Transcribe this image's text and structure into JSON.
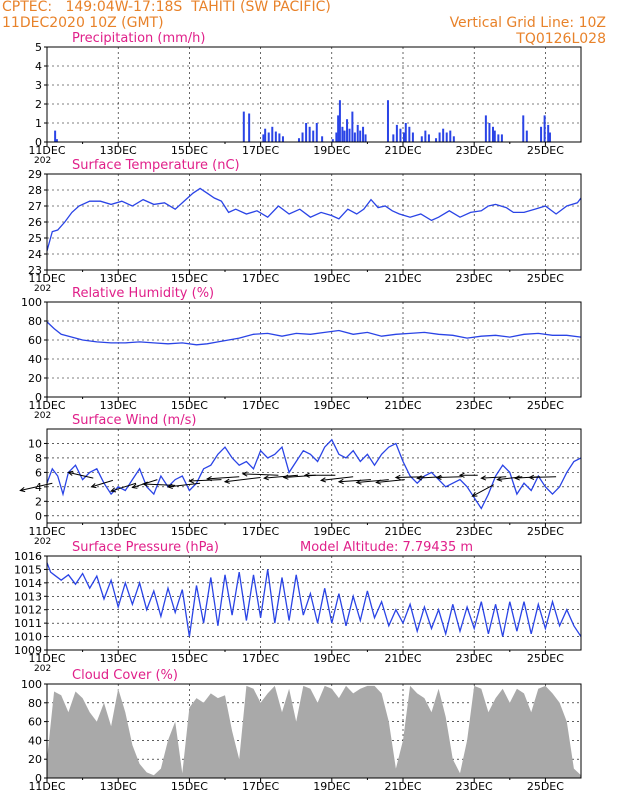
{
  "header": {
    "line1_left": "CPTEC:   149:04W-17:18S  TAHITI (SW PACIFIC)",
    "line2_left": "11DEC2020 10Z (GMT)",
    "line1_right": "Vertical Grid Line: 10Z",
    "line2_right": "TQ0126L028"
  },
  "colors": {
    "header": "#e8822a",
    "title": "#e0208a",
    "series": "#2a44e6",
    "barrel": "#000000",
    "cloud": "#a9a9a9"
  },
  "x_axis": {
    "ticks": [
      "11DEC",
      "13DEC",
      "15DEC",
      "17DEC",
      "19DEC",
      "21DEC",
      "23DEC",
      "25DEC"
    ],
    "year_fragment": "202"
  },
  "chart_data": [
    {
      "id": "precip",
      "type": "bar",
      "title": "Precipitation (mm/h)",
      "ylim": [
        0,
        5
      ],
      "yticks": [
        "0",
        "1",
        "2",
        "3",
        "4",
        "5"
      ],
      "x_unit": "days since 11DEC 10Z",
      "bars": [
        [
          0.2,
          0.6
        ],
        [
          0.25,
          0.15
        ],
        [
          5.5,
          1.6
        ],
        [
          5.65,
          1.5
        ],
        [
          6.05,
          0.4
        ],
        [
          6.1,
          0.7
        ],
        [
          6.2,
          0.5
        ],
        [
          6.3,
          0.8
        ],
        [
          6.4,
          0.55
        ],
        [
          6.5,
          0.45
        ],
        [
          6.6,
          0.3
        ],
        [
          7.05,
          0.2
        ],
        [
          7.15,
          0.5
        ],
        [
          7.25,
          1.0
        ],
        [
          7.35,
          0.8
        ],
        [
          7.45,
          0.6
        ],
        [
          7.55,
          1.0
        ],
        [
          7.7,
          0.3
        ],
        [
          8.0,
          0.15
        ],
        [
          8.1,
          0.5
        ],
        [
          8.15,
          1.4
        ],
        [
          8.2,
          2.2
        ],
        [
          8.27,
          0.8
        ],
        [
          8.33,
          0.6
        ],
        [
          8.4,
          1.2
        ],
        [
          8.47,
          0.7
        ],
        [
          8.55,
          1.6
        ],
        [
          8.62,
          0.5
        ],
        [
          8.7,
          0.9
        ],
        [
          8.77,
          0.6
        ],
        [
          8.85,
          0.8
        ],
        [
          8.92,
          0.4
        ],
        [
          9.55,
          2.2
        ],
        [
          9.7,
          0.4
        ],
        [
          9.8,
          0.9
        ],
        [
          9.9,
          0.7
        ],
        [
          10.0,
          0.5
        ],
        [
          10.05,
          1.0
        ],
        [
          10.15,
          0.8
        ],
        [
          10.25,
          0.5
        ],
        [
          10.5,
          0.3
        ],
        [
          10.6,
          0.6
        ],
        [
          10.7,
          0.4
        ],
        [
          10.9,
          0.2
        ],
        [
          11.0,
          0.5
        ],
        [
          11.1,
          0.7
        ],
        [
          11.2,
          0.5
        ],
        [
          11.3,
          0.6
        ],
        [
          11.4,
          0.3
        ],
        [
          12.3,
          1.4
        ],
        [
          12.4,
          1.0
        ],
        [
          12.5,
          0.8
        ],
        [
          12.55,
          0.6
        ],
        [
          12.65,
          0.4
        ],
        [
          12.75,
          0.4
        ],
        [
          13.35,
          1.4
        ],
        [
          13.45,
          0.6
        ],
        [
          13.85,
          0.8
        ],
        [
          13.95,
          1.4
        ],
        [
          14.05,
          0.9
        ],
        [
          14.1,
          0.5
        ]
      ]
    },
    {
      "id": "temp",
      "type": "line",
      "title": "Surface Temperature (nC)",
      "ylim": [
        23,
        29
      ],
      "yticks": [
        "23",
        "24",
        "25",
        "26",
        "27",
        "28",
        "29"
      ],
      "x_unit": "days since 11DEC 10Z",
      "x": [
        0,
        0.15,
        0.3,
        0.5,
        0.7,
        0.9,
        1.2,
        1.5,
        1.8,
        2.1,
        2.4,
        2.7,
        3.0,
        3.3,
        3.6,
        3.9,
        4.1,
        4.3,
        4.5,
        4.7,
        4.9,
        5.1,
        5.3,
        5.6,
        5.9,
        6.2,
        6.5,
        6.8,
        7.1,
        7.4,
        7.7,
        8.0,
        8.2,
        8.45,
        8.7,
        8.9,
        9.1,
        9.3,
        9.5,
        9.7,
        9.9,
        10.2,
        10.5,
        10.8,
        11.0,
        11.3,
        11.6,
        11.9,
        12.2,
        12.4,
        12.6,
        12.9,
        13.1,
        13.4,
        13.7,
        14.0,
        14.3,
        14.6,
        14.9,
        15.0
      ],
      "values": [
        24.2,
        25.4,
        25.5,
        26.0,
        26.6,
        27.0,
        27.3,
        27.3,
        27.1,
        27.3,
        27.0,
        27.4,
        27.1,
        27.2,
        26.8,
        27.4,
        27.8,
        28.1,
        27.8,
        27.5,
        27.3,
        26.6,
        26.8,
        26.5,
        26.7,
        26.3,
        27.0,
        26.5,
        26.8,
        26.3,
        26.6,
        26.4,
        26.2,
        26.8,
        26.5,
        26.8,
        27.4,
        26.9,
        27.0,
        26.7,
        26.5,
        26.3,
        26.5,
        26.1,
        26.3,
        26.7,
        26.3,
        26.6,
        26.7,
        27.0,
        27.1,
        26.9,
        26.6,
        26.6,
        26.8,
        27.0,
        26.5,
        27.0,
        27.2,
        27.5
      ]
    },
    {
      "id": "rh",
      "type": "line",
      "title": "Relative Humidity (%)",
      "ylim": [
        0,
        100
      ],
      "yticks": [
        "0",
        "20",
        "40",
        "60",
        "80",
        "100"
      ],
      "x_unit": "days since 11DEC 10Z",
      "x": [
        0,
        0.2,
        0.4,
        0.7,
        1.0,
        1.4,
        1.8,
        2.2,
        2.6,
        3.0,
        3.4,
        3.8,
        4.2,
        4.5,
        4.8,
        5.1,
        5.4,
        5.8,
        6.2,
        6.6,
        7.0,
        7.4,
        7.8,
        8.2,
        8.6,
        9.0,
        9.4,
        9.8,
        10.2,
        10.6,
        11.0,
        11.4,
        11.8,
        12.2,
        12.6,
        13.0,
        13.4,
        13.8,
        14.2,
        14.6,
        15.0
      ],
      "values": [
        79,
        72,
        66,
        63,
        60,
        58,
        57,
        57,
        58,
        57,
        56,
        57,
        55,
        56,
        58,
        60,
        62,
        66,
        67,
        64,
        67,
        66,
        68,
        70,
        66,
        68,
        64,
        66,
        67,
        68,
        66,
        65,
        62,
        64,
        65,
        63,
        66,
        67,
        65,
        65,
        63
      ]
    },
    {
      "id": "wind",
      "type": "line",
      "title": "Surface Wind (m/s)",
      "ylim": [
        -1,
        12
      ],
      "yticks": [
        "0",
        "2",
        "4",
        "6",
        "8",
        "10"
      ],
      "x_unit": "days since 11DEC 10Z",
      "x": [
        0,
        0.15,
        0.3,
        0.45,
        0.6,
        0.8,
        1.0,
        1.2,
        1.4,
        1.6,
        1.8,
        2.0,
        2.2,
        2.4,
        2.6,
        2.8,
        3.0,
        3.2,
        3.4,
        3.6,
        3.8,
        4.0,
        4.2,
        4.4,
        4.6,
        4.8,
        5.0,
        5.2,
        5.4,
        5.6,
        5.8,
        6.0,
        6.2,
        6.4,
        6.6,
        6.8,
        7.0,
        7.2,
        7.4,
        7.6,
        7.8,
        8.0,
        8.2,
        8.4,
        8.6,
        8.8,
        9.0,
        9.2,
        9.4,
        9.6,
        9.8,
        10.0,
        10.2,
        10.4,
        10.6,
        10.8,
        11.0,
        11.2,
        11.4,
        11.6,
        11.8,
        12.0,
        12.2,
        12.4,
        12.6,
        12.8,
        13.0,
        13.2,
        13.4,
        13.6,
        13.8,
        14.0,
        14.2,
        14.4,
        14.6,
        14.8,
        15.0
      ],
      "values": [
        4.5,
        6.5,
        5.5,
        3.0,
        6.0,
        7.0,
        5.0,
        6.0,
        6.5,
        4.5,
        3.0,
        4.0,
        3.5,
        5.0,
        6.5,
        4.0,
        3.0,
        5.5,
        4.0,
        5.0,
        5.5,
        3.5,
        4.5,
        6.5,
        7.0,
        8.5,
        9.5,
        8.0,
        7.0,
        7.5,
        6.5,
        9.0,
        8.0,
        8.5,
        9.5,
        6.0,
        7.5,
        9.0,
        8.5,
        7.5,
        9.5,
        10.5,
        8.5,
        8.0,
        9.0,
        7.5,
        8.5,
        7.0,
        8.5,
        9.5,
        10.0,
        7.5,
        5.5,
        4.5,
        5.5,
        6.0,
        5.0,
        4.0,
        4.5,
        5.0,
        4.0,
        2.5,
        1.0,
        3.0,
        5.5,
        7.0,
        6.0,
        3.0,
        4.5,
        3.5,
        5.5,
        4.0,
        3.0,
        4.0,
        6.0,
        7.5,
        8.0
      ],
      "arrows": [
        [
          0.15,
          4.5,
          0.9,
          1.0
        ],
        [
          1.3,
          5.2,
          0.7,
          -0.8
        ],
        [
          1.85,
          4.9,
          0.6,
          0.9
        ],
        [
          2.5,
          4.5,
          0.7,
          1.1
        ],
        [
          3.1,
          5.0,
          0.7,
          1.1
        ],
        [
          3.6,
          4.2,
          0.9,
          -0.2
        ],
        [
          4.3,
          4.5,
          0.9,
          0.5
        ],
        [
          4.9,
          5.0,
          0.9,
          0.2
        ],
        [
          5.4,
          5.4,
          0.9,
          0.3
        ],
        [
          6.0,
          5.3,
          1.0,
          0.6
        ],
        [
          6.5,
          5.6,
          1.0,
          -0.2
        ],
        [
          7.05,
          5.6,
          0.95,
          0.4
        ],
        [
          7.55,
          5.6,
          0.9,
          0.3
        ],
        [
          8.1,
          5.6,
          0.85,
          0.0
        ],
        [
          8.6,
          5.4,
          0.9,
          0.5
        ],
        [
          9.1,
          5.0,
          0.9,
          0.3
        ],
        [
          9.6,
          5.0,
          0.9,
          0.4
        ],
        [
          10.05,
          5.0,
          0.8,
          0.4
        ],
        [
          10.6,
          5.4,
          0.8,
          0.1
        ],
        [
          11.1,
          5.4,
          0.7,
          0.2
        ],
        [
          11.65,
          5.4,
          0.7,
          0.1
        ],
        [
          12.1,
          5.6,
          0.5,
          0.0
        ],
        [
          12.55,
          4.3,
          0.6,
          1.6
        ],
        [
          12.9,
          5.4,
          0.7,
          0.2
        ],
        [
          13.35,
          5.4,
          0.7,
          0.4
        ],
        [
          13.85,
          5.4,
          0.7,
          0.2
        ],
        [
          14.3,
          5.4,
          0.75,
          0.1
        ]
      ]
    },
    {
      "id": "pres",
      "type": "line",
      "title": "Surface Pressure (hPa)",
      "subtitle": "Model Altitude: 7.79435 m",
      "ylim": [
        1009,
        1016
      ],
      "yticks": [
        "1009",
        "1010",
        "1011",
        "1012",
        "1013",
        "1014",
        "1015",
        "1016"
      ],
      "x_unit": "days since 11DEC 10Z",
      "x": [
        0,
        0.1,
        0.2,
        0.4,
        0.6,
        0.8,
        1.0,
        1.2,
        1.4,
        1.6,
        1.8,
        2.0,
        2.2,
        2.4,
        2.6,
        2.8,
        3.0,
        3.2,
        3.4,
        3.6,
        3.8,
        4.0,
        4.2,
        4.4,
        4.6,
        4.8,
        5.0,
        5.2,
        5.4,
        5.6,
        5.8,
        6.0,
        6.2,
        6.4,
        6.6,
        6.8,
        7.0,
        7.2,
        7.4,
        7.6,
        7.8,
        8.0,
        8.2,
        8.4,
        8.6,
        8.8,
        9.0,
        9.2,
        9.4,
        9.6,
        9.8,
        10.0,
        10.2,
        10.4,
        10.6,
        10.8,
        11.0,
        11.2,
        11.4,
        11.6,
        11.8,
        12.0,
        12.2,
        12.4,
        12.6,
        12.8,
        13.0,
        13.2,
        13.4,
        13.6,
        13.8,
        14.0,
        14.2,
        14.4,
        14.6,
        14.8,
        15.0
      ],
      "values": [
        1015.5,
        1014.8,
        1014.6,
        1014.2,
        1014.6,
        1013.9,
        1014.7,
        1013.6,
        1014.5,
        1012.8,
        1014.2,
        1012.2,
        1014.0,
        1012.4,
        1014.0,
        1012.0,
        1013.4,
        1011.5,
        1013.6,
        1011.8,
        1013.5,
        1010.0,
        1013.8,
        1011.0,
        1014.4,
        1010.8,
        1014.6,
        1011.6,
        1014.8,
        1011.2,
        1014.6,
        1011.4,
        1015.0,
        1011.0,
        1014.4,
        1011.2,
        1014.6,
        1011.6,
        1013.2,
        1011.0,
        1013.6,
        1011.0,
        1013.2,
        1010.8,
        1013.0,
        1011.2,
        1013.4,
        1011.4,
        1012.6,
        1010.8,
        1012.0,
        1011.0,
        1012.4,
        1010.4,
        1012.2,
        1010.6,
        1012.0,
        1010.2,
        1012.4,
        1010.4,
        1012.2,
        1010.6,
        1012.6,
        1010.2,
        1012.4,
        1010.0,
        1012.6,
        1010.4,
        1012.6,
        1010.2,
        1012.4,
        1010.6,
        1012.6,
        1010.8,
        1012.0,
        1010.8,
        1010.0
      ]
    },
    {
      "id": "cloud",
      "type": "bar",
      "title": "Cloud Cover (%)",
      "ylim": [
        0,
        100
      ],
      "yticks": [
        "0",
        "20",
        "40",
        "60",
        "80",
        "100"
      ],
      "x_unit": "days since 11DEC 10Z",
      "x": [
        0,
        0.2,
        0.4,
        0.6,
        0.8,
        1.0,
        1.2,
        1.4,
        1.6,
        1.8,
        2.0,
        2.2,
        2.4,
        2.6,
        2.8,
        3.0,
        3.2,
        3.4,
        3.6,
        3.8,
        4.0,
        4.2,
        4.4,
        4.6,
        4.8,
        5.0,
        5.2,
        5.4,
        5.6,
        5.8,
        6.0,
        6.2,
        6.4,
        6.6,
        6.8,
        7.0,
        7.2,
        7.4,
        7.6,
        7.8,
        8.0,
        8.2,
        8.4,
        8.6,
        8.8,
        9.0,
        9.2,
        9.4,
        9.6,
        9.8,
        10.0,
        10.2,
        10.4,
        10.6,
        10.8,
        11.0,
        11.2,
        11.4,
        11.6,
        11.8,
        12.0,
        12.2,
        12.4,
        12.6,
        12.8,
        13.0,
        13.2,
        13.4,
        13.6,
        13.8,
        14.0,
        14.2,
        14.4,
        14.6,
        14.8,
        15.0
      ],
      "values": [
        20,
        92,
        88,
        70,
        92,
        85,
        70,
        60,
        80,
        55,
        95,
        70,
        35,
        15,
        6,
        3,
        10,
        40,
        60,
        5,
        75,
        85,
        80,
        90,
        85,
        88,
        50,
        20,
        98,
        95,
        80,
        90,
        98,
        70,
        95,
        60,
        98,
        95,
        80,
        98,
        95,
        85,
        98,
        90,
        95,
        98,
        98,
        90,
        60,
        10,
        40,
        98,
        90,
        85,
        70,
        95,
        65,
        20,
        5,
        40,
        98,
        95,
        70,
        85,
        95,
        80,
        95,
        90,
        70,
        95,
        98,
        90,
        80,
        60,
        10,
        3
      ]
    }
  ]
}
